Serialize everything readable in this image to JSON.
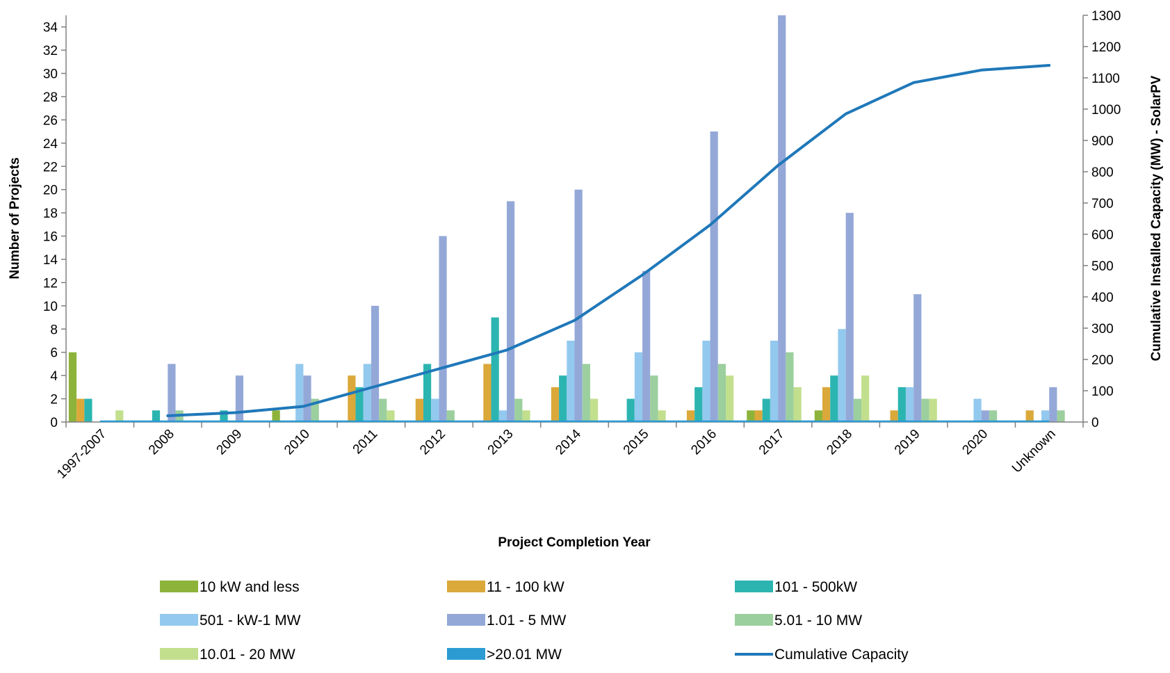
{
  "chart_data": {
    "type": "bar",
    "xlabel": "Project Completion Year",
    "ylabel": "Number of Projects",
    "y2label": "Cumulative Installed Capacity (MW) - SolarPV",
    "ylim": [
      0,
      35
    ],
    "yticks": [
      0,
      2,
      4,
      6,
      8,
      10,
      12,
      14,
      16,
      18,
      20,
      22,
      24,
      26,
      28,
      30,
      32,
      34
    ],
    "y2lim": [
      0,
      1300
    ],
    "y2ticks": [
      0,
      100,
      200,
      300,
      400,
      500,
      600,
      700,
      800,
      900,
      1000,
      1100,
      1200,
      1300
    ],
    "grid": false,
    "legend_position": "bottom",
    "categories": [
      "1997-2007",
      "2008",
      "2009",
      "2010",
      "2011",
      "2012",
      "2013",
      "2014",
      "2015",
      "2016",
      "2017",
      "2018",
      "2019",
      "2020",
      "Unknown"
    ],
    "series": [
      {
        "name": "10 kW and less",
        "color": "#8db33a",
        "values": [
          6,
          0,
          0,
          1,
          0,
          0,
          0,
          0,
          0,
          0,
          1,
          1,
          0,
          0,
          0
        ]
      },
      {
        "name": "11 - 100 kW",
        "color": "#dba83a",
        "values": [
          2,
          0,
          0,
          0,
          4,
          2,
          5,
          3,
          0,
          1,
          1,
          3,
          1,
          0,
          1
        ]
      },
      {
        "name": "101 - 500kW",
        "color": "#2cb5b0",
        "values": [
          2,
          1,
          1,
          0,
          3,
          5,
          9,
          4,
          2,
          3,
          2,
          4,
          3,
          0,
          0
        ]
      },
      {
        "name": "501 - kW-1 MW",
        "color": "#93c9ee",
        "values": [
          0,
          0,
          0,
          5,
          5,
          2,
          1,
          7,
          6,
          7,
          7,
          8,
          3,
          2,
          1
        ]
      },
      {
        "name": "1.01 - 5 MW",
        "color": "#94a8d8",
        "values": [
          0,
          5,
          4,
          4,
          10,
          16,
          19,
          20,
          13,
          25,
          35,
          18,
          11,
          1,
          3
        ]
      },
      {
        "name": "5.01 - 10 MW",
        "color": "#9ccf9e",
        "values": [
          0,
          1,
          0,
          2,
          2,
          1,
          2,
          5,
          4,
          5,
          6,
          2,
          2,
          1,
          1
        ]
      },
      {
        "name": "10.01 - 20 MW",
        "color": "#c2df8e",
        "values": [
          1,
          0,
          0,
          0,
          1,
          0,
          1,
          2,
          1,
          4,
          3,
          4,
          2,
          0,
          0
        ]
      },
      {
        "name": ">20.01 MW",
        "color": "#2c9bd3",
        "values": [
          0,
          0,
          0,
          0,
          0,
          0,
          0,
          0,
          0,
          0,
          0,
          0,
          0,
          0,
          0
        ]
      }
    ],
    "line": {
      "name": "Cumulative Capacity",
      "color": "#1f78b9",
      "axis": "y2",
      "values": [
        null,
        20,
        30,
        50,
        110,
        170,
        230,
        325,
        470,
        630,
        820,
        985,
        1085,
        1125,
        1140
      ]
    }
  }
}
